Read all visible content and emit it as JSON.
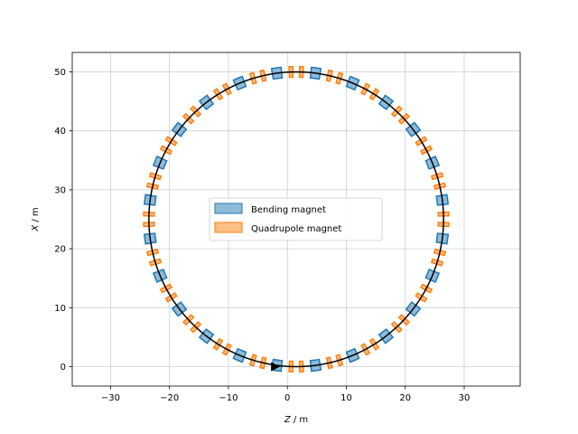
{
  "chart_data": {
    "type": "scatter",
    "title": "",
    "xlabel_var": "Z",
    "xlabel_unit": " / m",
    "ylabel_var": "X",
    "ylabel_unit": " / m",
    "xlim": [
      -36.5,
      39.5
    ],
    "ylim": [
      -3.3,
      53.3
    ],
    "xticks": [
      -30,
      -20,
      -10,
      0,
      10,
      20,
      30
    ],
    "yticks": [
      0,
      10,
      20,
      30,
      40,
      50
    ],
    "grid": true,
    "legend_position": "center",
    "ring": {
      "center_z": 1.5,
      "center_x": 25,
      "radius": 25,
      "color": "#000000"
    },
    "beam_direction_marker": {
      "z": -2,
      "x": 0,
      "direction": "+Z"
    },
    "series": [
      {
        "name": "Bending magnet",
        "color": "#1f77b4",
        "magnet_count": 24,
        "first_angle_deg": 7.5,
        "angle_step_deg": 15,
        "arc_length_deg": 3.6
      },
      {
        "name": "Quadrupole magnet",
        "color": "#ff7f0e",
        "magnet_count": 48,
        "first_angle_deg": 13,
        "angle_step_deg": 15,
        "pair_offset_deg": 4,
        "arc_length_deg": 1.4
      }
    ]
  }
}
